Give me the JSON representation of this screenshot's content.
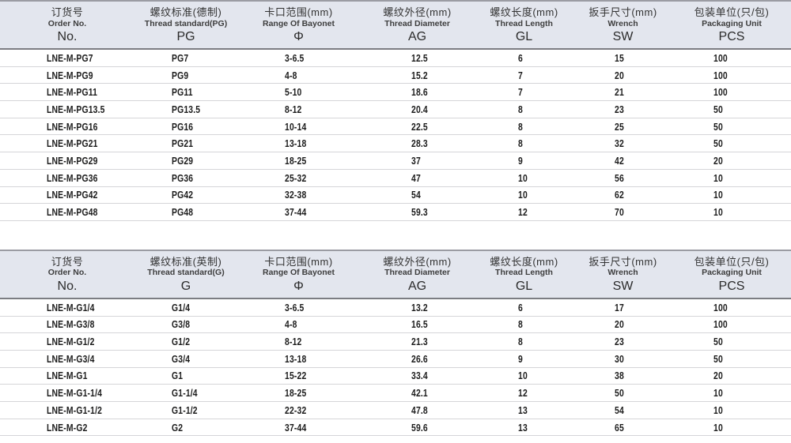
{
  "tables": [
    {
      "title": "PG thread (German standard) specification table",
      "columns": [
        {
          "zh": "订货号",
          "en": "Order No.",
          "code": "No."
        },
        {
          "zh": "螺纹标准(德制)",
          "en": "Thread standard(PG)",
          "code": "PG"
        },
        {
          "zh": "卡口范围(mm)",
          "en": "Range Of Bayonet",
          "code": "Φ"
        },
        {
          "zh": "螺纹外径(mm)",
          "en": "Thread Diameter",
          "code": "AG"
        },
        {
          "zh": "螺纹长度(mm)",
          "en": "Thread Length",
          "code": "GL"
        },
        {
          "zh": "扳手尺寸(mm)",
          "en": "Wrench",
          "code": "SW"
        },
        {
          "zh": "包装单位(只/包)",
          "en": "Packaging Unit",
          "code": "PCS"
        }
      ],
      "rows": [
        [
          "LNE-M-PG7",
          "PG7",
          "3-6.5",
          "12.5",
          "6",
          "15",
          "100"
        ],
        [
          "LNE-M-PG9",
          "PG9",
          "4-8",
          "15.2",
          "7",
          "20",
          "100"
        ],
        [
          "LNE-M-PG11",
          "PG11",
          "5-10",
          "18.6",
          "7",
          "21",
          "100"
        ],
        [
          "LNE-M-PG13.5",
          "PG13.5",
          "8-12",
          "20.4",
          "8",
          "23",
          "50"
        ],
        [
          "LNE-M-PG16",
          "PG16",
          "10-14",
          "22.5",
          "8",
          "25",
          "50"
        ],
        [
          "LNE-M-PG21",
          "PG21",
          "13-18",
          "28.3",
          "8",
          "32",
          "50"
        ],
        [
          "LNE-M-PG29",
          "PG29",
          "18-25",
          "37",
          "9",
          "42",
          "20"
        ],
        [
          "LNE-M-PG36",
          "PG36",
          "25-32",
          "47",
          "10",
          "56",
          "10"
        ],
        [
          "LNE-M-PG42",
          "PG42",
          "32-38",
          "54",
          "10",
          "62",
          "10"
        ],
        [
          "LNE-M-PG48",
          "PG48",
          "37-44",
          "59.3",
          "12",
          "70",
          "10"
        ]
      ]
    },
    {
      "title": "G thread (British standard) specification table",
      "columns": [
        {
          "zh": "订货号",
          "en": "Order No.",
          "code": "No."
        },
        {
          "zh": "螺纹标准(英制)",
          "en": "Thread standard(G)",
          "code": "G"
        },
        {
          "zh": "卡口范围(mm)",
          "en": "Range Of Bayonet",
          "code": "Φ"
        },
        {
          "zh": "螺纹外径(mm)",
          "en": "Thread Diameter",
          "code": "AG"
        },
        {
          "zh": "螺纹长度(mm)",
          "en": "Thread Length",
          "code": "GL"
        },
        {
          "zh": "扳手尺寸(mm)",
          "en": "Wrench",
          "code": "SW"
        },
        {
          "zh": "包装单位(只/包)",
          "en": "Packaging Unit",
          "code": "PCS"
        }
      ],
      "rows": [
        [
          "LNE-M-G1/4",
          "G1/4",
          "3-6.5",
          "13.2",
          "6",
          "17",
          "100"
        ],
        [
          "LNE-M-G3/8",
          "G3/8",
          "4-8",
          "16.5",
          "8",
          "20",
          "100"
        ],
        [
          "LNE-M-G1/2",
          "G1/2",
          "8-12",
          "21.3",
          "8",
          "23",
          "50"
        ],
        [
          "LNE-M-G3/4",
          "G3/4",
          "13-18",
          "26.6",
          "9",
          "30",
          "50"
        ],
        [
          "LNE-M-G1",
          "G1",
          "15-22",
          "33.4",
          "10",
          "38",
          "20"
        ],
        [
          "LNE-M-G1-1/4",
          "G1-1/4",
          "18-25",
          "42.1",
          "12",
          "50",
          "10"
        ],
        [
          "LNE-M-G1-1/2",
          "G1-1/2",
          "22-32",
          "47.8",
          "13",
          "54",
          "10"
        ],
        [
          "LNE-M-G2",
          "G2",
          "37-44",
          "59.6",
          "13",
          "65",
          "10"
        ]
      ]
    }
  ],
  "colors": {
    "header_bg": "#e3e6ee",
    "header_top_border": "#9b9ca3",
    "header_bottom_border": "#7c7d82",
    "row_divider": "#d5d5d8",
    "text": "#1d1d1d"
  }
}
